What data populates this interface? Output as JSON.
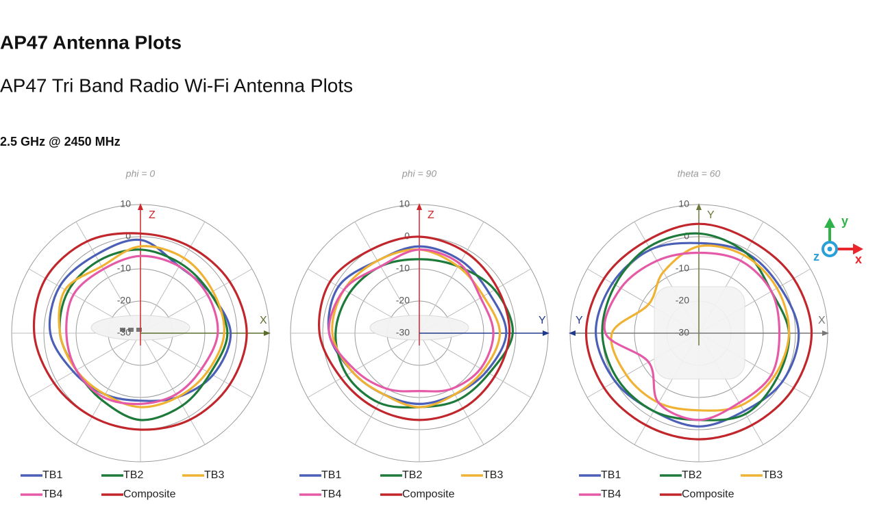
{
  "header": {
    "title": "AP47 Antenna Plots",
    "subtitle": "AP47 Tri Band Radio Wi-Fi Antenna Plots",
    "section": "2.5 GHz @ 2450 MHz"
  },
  "axes_icon": {
    "x": "x",
    "y": "y",
    "z": "z"
  },
  "chart_data": [
    {
      "type": "polar",
      "title": "phi = 0",
      "axes": {
        "up": "Z",
        "right": "X"
      },
      "rlim": [
        -30,
        10
      ],
      "rticks": [
        10,
        0,
        -10,
        -20,
        -30
      ],
      "grid": true,
      "series": [
        {
          "name": "TB1",
          "color": "#4a5fb5",
          "values": [
            -1,
            -6,
            -5,
            -2,
            -4,
            -7,
            -9,
            -8,
            -6,
            -2,
            -1,
            -2
          ]
        },
        {
          "name": "TB2",
          "color": "#1e7a3a",
          "values": [
            -4,
            -5,
            -5,
            -3,
            -5,
            -4,
            -3,
            -6,
            -7,
            -5,
            -4,
            -4
          ]
        },
        {
          "name": "TB3",
          "color": "#f0b232",
          "values": [
            -3,
            -3,
            -4,
            -4,
            -6,
            -7,
            -7,
            -8,
            -7,
            -5,
            -3,
            -6
          ]
        },
        {
          "name": "TB4",
          "color": "#e55aa6",
          "values": [
            -6,
            -6,
            -6,
            -6,
            -8,
            -8,
            -8,
            -7,
            -7,
            -7,
            -6,
            -7
          ]
        },
        {
          "name": "Composite",
          "color": "#c0262b",
          "values": [
            1,
            1,
            2,
            3,
            2,
            1,
            0,
            0,
            1,
            3,
            4,
            3
          ]
        }
      ]
    },
    {
      "type": "polar",
      "title": "phi = 90",
      "axes": {
        "up": "Z",
        "right": "Y"
      },
      "rlim": [
        -30,
        10
      ],
      "rticks": [
        10,
        0,
        -10,
        -20,
        -30
      ],
      "grid": true,
      "series": [
        {
          "name": "TB1",
          "color": "#4a5fb5",
          "values": [
            -3,
            -4,
            -5,
            -3,
            -6,
            -8,
            -8,
            -8,
            -6,
            -2,
            -1,
            -4
          ]
        },
        {
          "name": "TB2",
          "color": "#1e7a3a",
          "values": [
            -7,
            -6,
            -3,
            -1,
            -5,
            -6,
            -7,
            -5,
            -4,
            -4,
            -5,
            -6
          ]
        },
        {
          "name": "TB3",
          "color": "#f0b232",
          "values": [
            -4,
            -6,
            -7,
            -5,
            -7,
            -8,
            -7,
            -8,
            -6,
            -3,
            -3,
            -4
          ]
        },
        {
          "name": "TB4",
          "color": "#e55aa6",
          "values": [
            -4,
            -5,
            -8,
            -7,
            -8,
            -10,
            -12,
            -10,
            -7,
            -2,
            -3,
            -6
          ]
        },
        {
          "name": "Composite",
          "color": "#c0262b",
          "values": [
            0,
            -1,
            -2,
            -2,
            -3,
            -3,
            -3,
            -3,
            -2,
            1,
            2,
            0
          ]
        }
      ]
    },
    {
      "type": "polar",
      "title": "theta = 60",
      "axes": {
        "up": "Y",
        "right": "X",
        "left": "Y"
      },
      "rlim": [
        -30,
        10
      ],
      "rticks": [
        10,
        0,
        -10,
        -20,
        -30
      ],
      "grid": true,
      "series": [
        {
          "name": "TB1",
          "color": "#4a5fb5",
          "values": [
            -2,
            -1,
            -1,
            1,
            0,
            -2,
            -1,
            -2,
            0,
            2,
            1,
            0
          ]
        },
        {
          "name": "TB2",
          "color": "#1e7a3a",
          "values": [
            1,
            -1,
            -4,
            -2,
            -2,
            -1,
            -3,
            -2,
            -1,
            0,
            0,
            1
          ]
        },
        {
          "name": "TB3",
          "color": "#f0b232",
          "values": [
            -3,
            -2,
            -2,
            -2,
            -3,
            -4,
            -6,
            -5,
            -4,
            -3,
            -12,
            -8
          ]
        },
        {
          "name": "TB4",
          "color": "#e55aa6",
          "values": [
            -5,
            -4,
            -4,
            -5,
            -4,
            -5,
            -3,
            -5,
            -12,
            -1,
            -2,
            -4
          ]
        },
        {
          "name": "Composite",
          "color": "#c0262b",
          "values": [
            4,
            3,
            4,
            5,
            4,
            3,
            3,
            3,
            4,
            5,
            4,
            3
          ]
        }
      ]
    }
  ]
}
